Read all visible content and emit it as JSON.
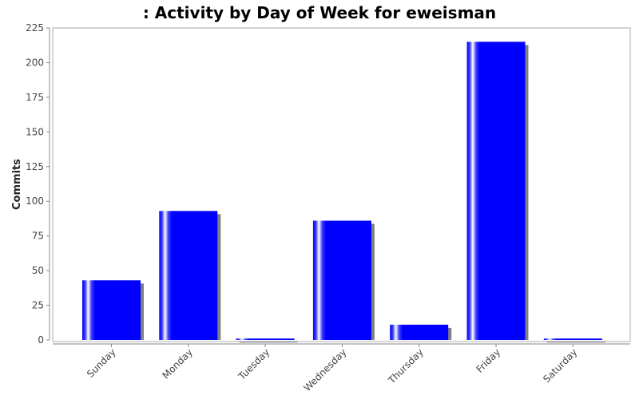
{
  "chart_data": {
    "type": "bar",
    "title": ": Activity by Day of Week for eweisman",
    "xlabel": "",
    "ylabel": "Commits",
    "categories": [
      "Sunday",
      "Monday",
      "Tuesday",
      "Wednesday",
      "Thursday",
      "Friday",
      "Saturday"
    ],
    "values": [
      43,
      93,
      1,
      86,
      11,
      215,
      1
    ],
    "ylim": [
      0,
      225
    ],
    "yticks": [
      "0",
      "25",
      "50",
      "75",
      "100",
      "125",
      "150",
      "175",
      "200",
      "225"
    ],
    "grid": false,
    "legend": "none",
    "colors": {
      "bar": "#0000ff",
      "bar_highlight": "#ffffff",
      "shadow": "#808080",
      "axis": "#888888",
      "tick_text": "#444444"
    }
  }
}
